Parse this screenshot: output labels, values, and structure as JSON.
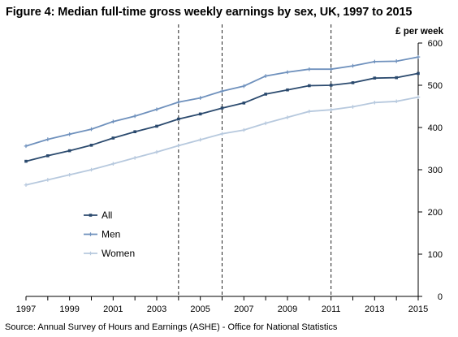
{
  "figure": {
    "title": "Figure 4: Median full-time gross weekly earnings by sex, UK, 1997 to 2015",
    "source": "Source: Annual Survey of Hours and Earnings (ASHE) - Office for National Statistics"
  },
  "chart_data": {
    "type": "line",
    "title": "Figure 4: Median full-time gross weekly earnings by sex, UK, 1997 to 2015",
    "ylabel": "£ per week",
    "xlabel": "",
    "x": [
      1997,
      1998,
      1999,
      2000,
      2001,
      2002,
      2003,
      2004,
      2005,
      2006,
      2007,
      2008,
      2009,
      2010,
      2011,
      2012,
      2013,
      2014,
      2015
    ],
    "x_tick_labels": [
      "1997",
      "1999",
      "2001",
      "2003",
      "2005",
      "2007",
      "2009",
      "2011",
      "2013",
      "2015"
    ],
    "y_tick_labels": [
      "0",
      "100",
      "200",
      "300",
      "400",
      "500",
      "600"
    ],
    "ylim": [
      0,
      600
    ],
    "xlim": [
      1997,
      2015
    ],
    "y_axis_side": "right",
    "grid": false,
    "reference_lines_x": [
      2004,
      2006,
      2011
    ],
    "legend_position": "lower-left",
    "series": [
      {
        "name": "All",
        "color": "#2b4a6e",
        "values": [
          320,
          333,
          345,
          358,
          375,
          390,
          403,
          420,
          432,
          446,
          458,
          479,
          489,
          499,
          500,
          506,
          517,
          518,
          528
        ]
      },
      {
        "name": "Men",
        "color": "#6f91bd",
        "values": [
          356,
          372,
          384,
          396,
          414,
          427,
          443,
          460,
          470,
          486,
          498,
          522,
          531,
          538,
          538,
          546,
          556,
          557,
          567
        ]
      },
      {
        "name": "Women",
        "color": "#b7c9de",
        "values": [
          264,
          276,
          288,
          300,
          314,
          328,
          342,
          357,
          371,
          385,
          394,
          410,
          424,
          438,
          442,
          449,
          459,
          462,
          472
        ]
      }
    ]
  }
}
